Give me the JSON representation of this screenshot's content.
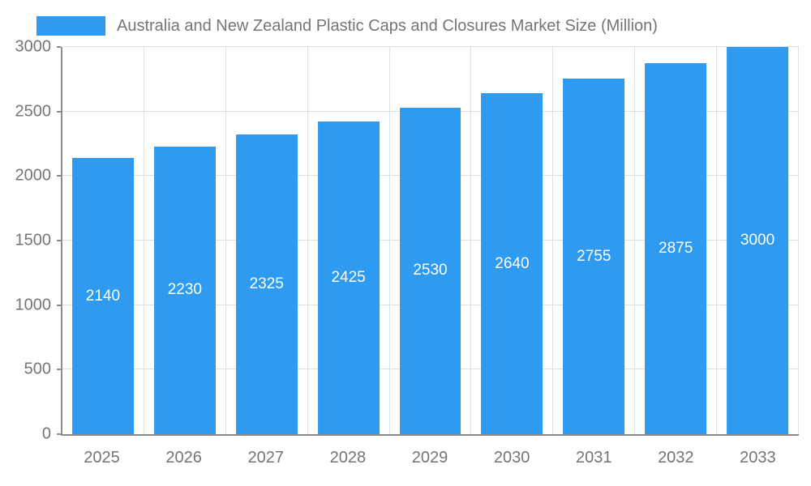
{
  "legend": {
    "title": "Australia and New Zealand Plastic Caps and Closures Market Size (Million)"
  },
  "chart_data": {
    "type": "bar",
    "title": "Australia and New Zealand Plastic Caps and Closures Market Size (Million)",
    "categories": [
      "2025",
      "2026",
      "2027",
      "2028",
      "2029",
      "2030",
      "2031",
      "2032",
      "2033"
    ],
    "values": [
      2140,
      2230,
      2325,
      2425,
      2530,
      2640,
      2755,
      2875,
      3000
    ],
    "xlabel": "",
    "ylabel": "",
    "ylim": [
      0,
      3000
    ],
    "yticks": [
      0,
      500,
      1000,
      1500,
      2000,
      2500,
      3000
    ],
    "grid": true,
    "legend_position": "top",
    "colors": {
      "bar": "#2E9BF0",
      "data_label": "#ffffff",
      "axis": "#8c8c8c",
      "gridline": "#e0e0e0",
      "text": "#757575"
    }
  }
}
